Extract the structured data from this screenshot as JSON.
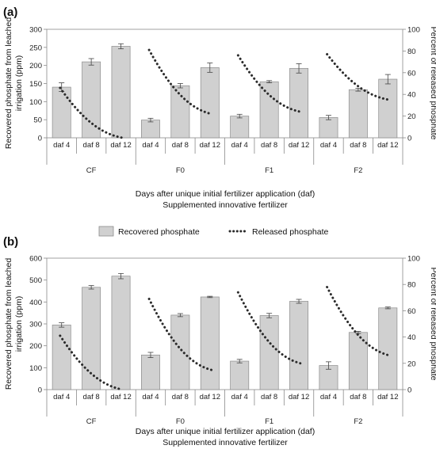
{
  "colors": {
    "bar_fill": "#d0d0d0",
    "bar_stroke": "#8c8c8c",
    "line": "#2b2b2b",
    "axis": "#8a8a8a"
  },
  "legend": {
    "position": "center-between-panels",
    "bar_label": "Recovered phosphate",
    "line_label": "Released phosphate"
  },
  "chart_data": [
    {
      "type": "bar",
      "panel_label": "(a)",
      "categories": [
        "daf 4",
        "daf 8",
        "daf 12",
        "daf 4",
        "daf 8",
        "daf 12",
        "daf 4",
        "daf 8",
        "daf 12",
        "daf 4",
        "daf 8",
        "daf 12"
      ],
      "groups": [
        "CF",
        "F0",
        "F1",
        "F2"
      ],
      "series": [
        {
          "name": "Recovered phosphate",
          "axis": "left",
          "values": [
            140,
            210,
            253,
            49,
            144,
            194,
            60,
            155,
            192,
            56,
            133,
            162
          ],
          "errors": [
            12,
            9,
            7,
            5,
            6,
            13,
            5,
            3,
            13,
            6,
            4,
            13
          ]
        },
        {
          "name": "Released phosphate",
          "axis": "right",
          "style": "dotted",
          "segments": [
            {
              "group": "CF",
              "start": 46,
              "end": 0
            },
            {
              "group": "F0",
              "start": 81,
              "end": 22
            },
            {
              "group": "F1",
              "start": 76,
              "end": 24
            },
            {
              "group": "F2",
              "start": 77,
              "end": 35
            }
          ]
        }
      ],
      "ylabel": "Recovered phosphate from leached irrigation (ppm)",
      "ylabel_lines": [
        "Recovered phosphate from leached",
        "irrigation (ppm)"
      ],
      "y2label": "Percent of released phosphate",
      "xlabel_lines": [
        "Days after unique initial fertilizer application (daf)",
        "Supplemented innovative fertilizer"
      ],
      "ylim": [
        0,
        300
      ],
      "yticks": [
        0,
        50,
        100,
        150,
        200,
        250,
        300
      ],
      "y2lim": [
        0,
        100
      ],
      "y2ticks": [
        0,
        20,
        40,
        60,
        80,
        100
      ],
      "grid": false
    },
    {
      "type": "bar",
      "panel_label": "(b)",
      "categories": [
        "daf 4",
        "daf 8",
        "daf 12",
        "daf 4",
        "daf 8",
        "daf 12",
        "daf 4",
        "daf 8",
        "daf 12",
        "daf 4",
        "daf 8",
        "daf 12"
      ],
      "groups": [
        "CF",
        "F0",
        "F1",
        "F2"
      ],
      "series": [
        {
          "name": "Recovered phosphate",
          "axis": "left",
          "values": [
            295,
            467,
            518,
            158,
            340,
            423,
            130,
            338,
            403,
            110,
            261,
            373
          ],
          "errors": [
            10,
            8,
            12,
            12,
            7,
            3,
            8,
            10,
            9,
            17,
            5,
            4
          ]
        },
        {
          "name": "Released phosphate",
          "axis": "right",
          "style": "dotted",
          "segments": [
            {
              "group": "CF",
              "start": 41,
              "end": 0
            },
            {
              "group": "F0",
              "start": 69,
              "end": 15
            },
            {
              "group": "F1",
              "start": 74,
              "end": 20
            },
            {
              "group": "F2",
              "start": 78,
              "end": 26
            }
          ]
        }
      ],
      "ylabel": "Recovered phosphate from leached irrigation (ppm)",
      "ylabel_lines": [
        "Recovered phosphate from leached",
        "irrigation (ppm)"
      ],
      "y2label": "Percent of released phosphate",
      "xlabel_lines": [
        "Days after unique initial fertilizer application (daf)",
        "Supplemented innovative fertilizer"
      ],
      "ylim": [
        0,
        600
      ],
      "yticks": [
        0,
        100,
        200,
        300,
        400,
        500,
        600
      ],
      "y2lim": [
        0,
        100
      ],
      "y2ticks": [
        0,
        20,
        40,
        60,
        80,
        100
      ],
      "grid": false
    }
  ]
}
